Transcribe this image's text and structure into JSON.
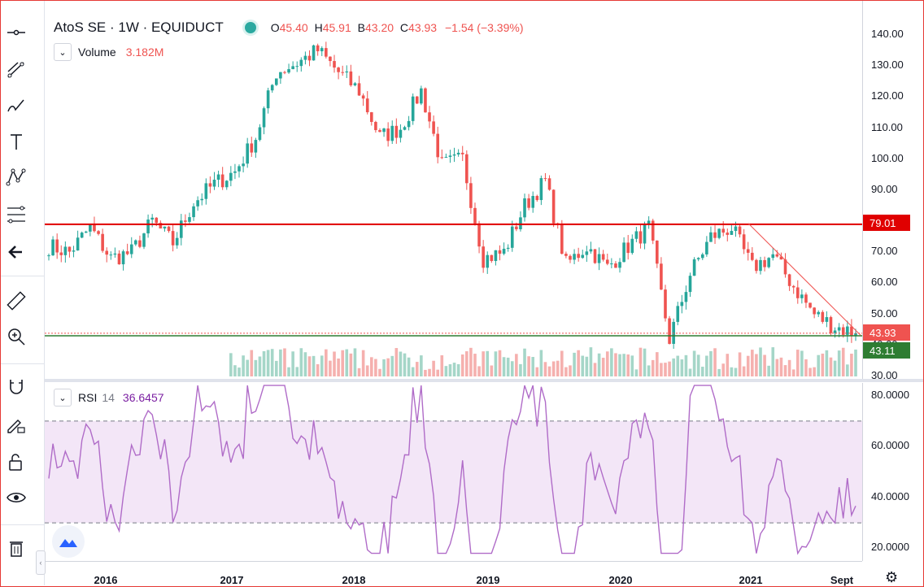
{
  "legend": {
    "symbol": "AtoS SE · 1W · EQUIDUCT",
    "open_label": "O",
    "open": "45.40",
    "high_label": "H",
    "high": "45.91",
    "low_label": "B",
    "low": "43.20",
    "close_label": "C",
    "close": "43.93",
    "change": "−1.54 (−3.39%)"
  },
  "volume_legend": {
    "label": "Volume",
    "value": "3.182M"
  },
  "rsi_legend": {
    "label": "RSI",
    "length": "14",
    "value": "36.6457"
  },
  "price_axis": {
    "ticks": [
      "140.00",
      "130.00",
      "120.00",
      "110.00",
      "100.00",
      "90.00",
      "80.00",
      "70.00",
      "60.00",
      "50.00",
      "40.00",
      "30.00"
    ],
    "tags": {
      "resistance": "79.01",
      "last": "43.93",
      "support": "43.11"
    }
  },
  "rsi_axis": {
    "ticks": [
      "80.0000",
      "60.0000",
      "40.0000",
      "20.0000"
    ]
  },
  "time_axis": {
    "labels": [
      "2016",
      "2017",
      "2018",
      "2019",
      "2020",
      "2021",
      "Sept"
    ]
  },
  "colors": {
    "up": "#26a69a",
    "down": "#ef5350",
    "rsi": "#b06cc8",
    "rsi_band": "#f3e6f7",
    "resistance": "#e00000",
    "support": "#2e7d32"
  },
  "toolbar_icons": [
    "crosshair-icon",
    "trend-line-icon",
    "brush-icon",
    "text-icon",
    "pattern-icon",
    "fib-retracement-icon",
    "back-arrow-icon",
    "ruler-icon",
    "zoom-in-icon",
    "magnet-icon",
    "lock-drawing-icon",
    "unlock-icon",
    "eye-icon",
    "trash-icon"
  ],
  "chart_data": {
    "type": "candlestick",
    "title": "AtoS SE · 1W · EQUIDUCT",
    "x": [
      "2015-08",
      "2015-10",
      "2015-12",
      "2016-02",
      "2016-04",
      "2016-06",
      "2016-08",
      "2016-10",
      "2016-12",
      "2017-02",
      "2017-04",
      "2017-06",
      "2017-08",
      "2017-10",
      "2017-12",
      "2018-02",
      "2018-04",
      "2018-06",
      "2018-08",
      "2018-10",
      "2018-12",
      "2019-02",
      "2019-04",
      "2019-06",
      "2019-08",
      "2019-10",
      "2019-12",
      "2020-02",
      "2020-03",
      "2020-05",
      "2020-07",
      "2020-09",
      "2020-11",
      "2021-01",
      "2021-03",
      "2021-05",
      "2021-07",
      "2021-08",
      "2021-09",
      "2021-10"
    ],
    "close": [
      72,
      70,
      78,
      68,
      70,
      80,
      73,
      86,
      92,
      96,
      107,
      128,
      131,
      135,
      128,
      122,
      107,
      110,
      122,
      98,
      100,
      68,
      70,
      85,
      93,
      66,
      72,
      65,
      72,
      78,
      42,
      63,
      75,
      78,
      65,
      69,
      59,
      50,
      46,
      43.93
    ],
    "lines": {
      "resistance": 79.01,
      "support": 43.11,
      "last": 43.93
    },
    "ylim": [
      30,
      140
    ],
    "rsi": {
      "length": 14,
      "last": 36.6457,
      "band": [
        30,
        70
      ],
      "ylim": [
        15,
        85
      ]
    }
  }
}
